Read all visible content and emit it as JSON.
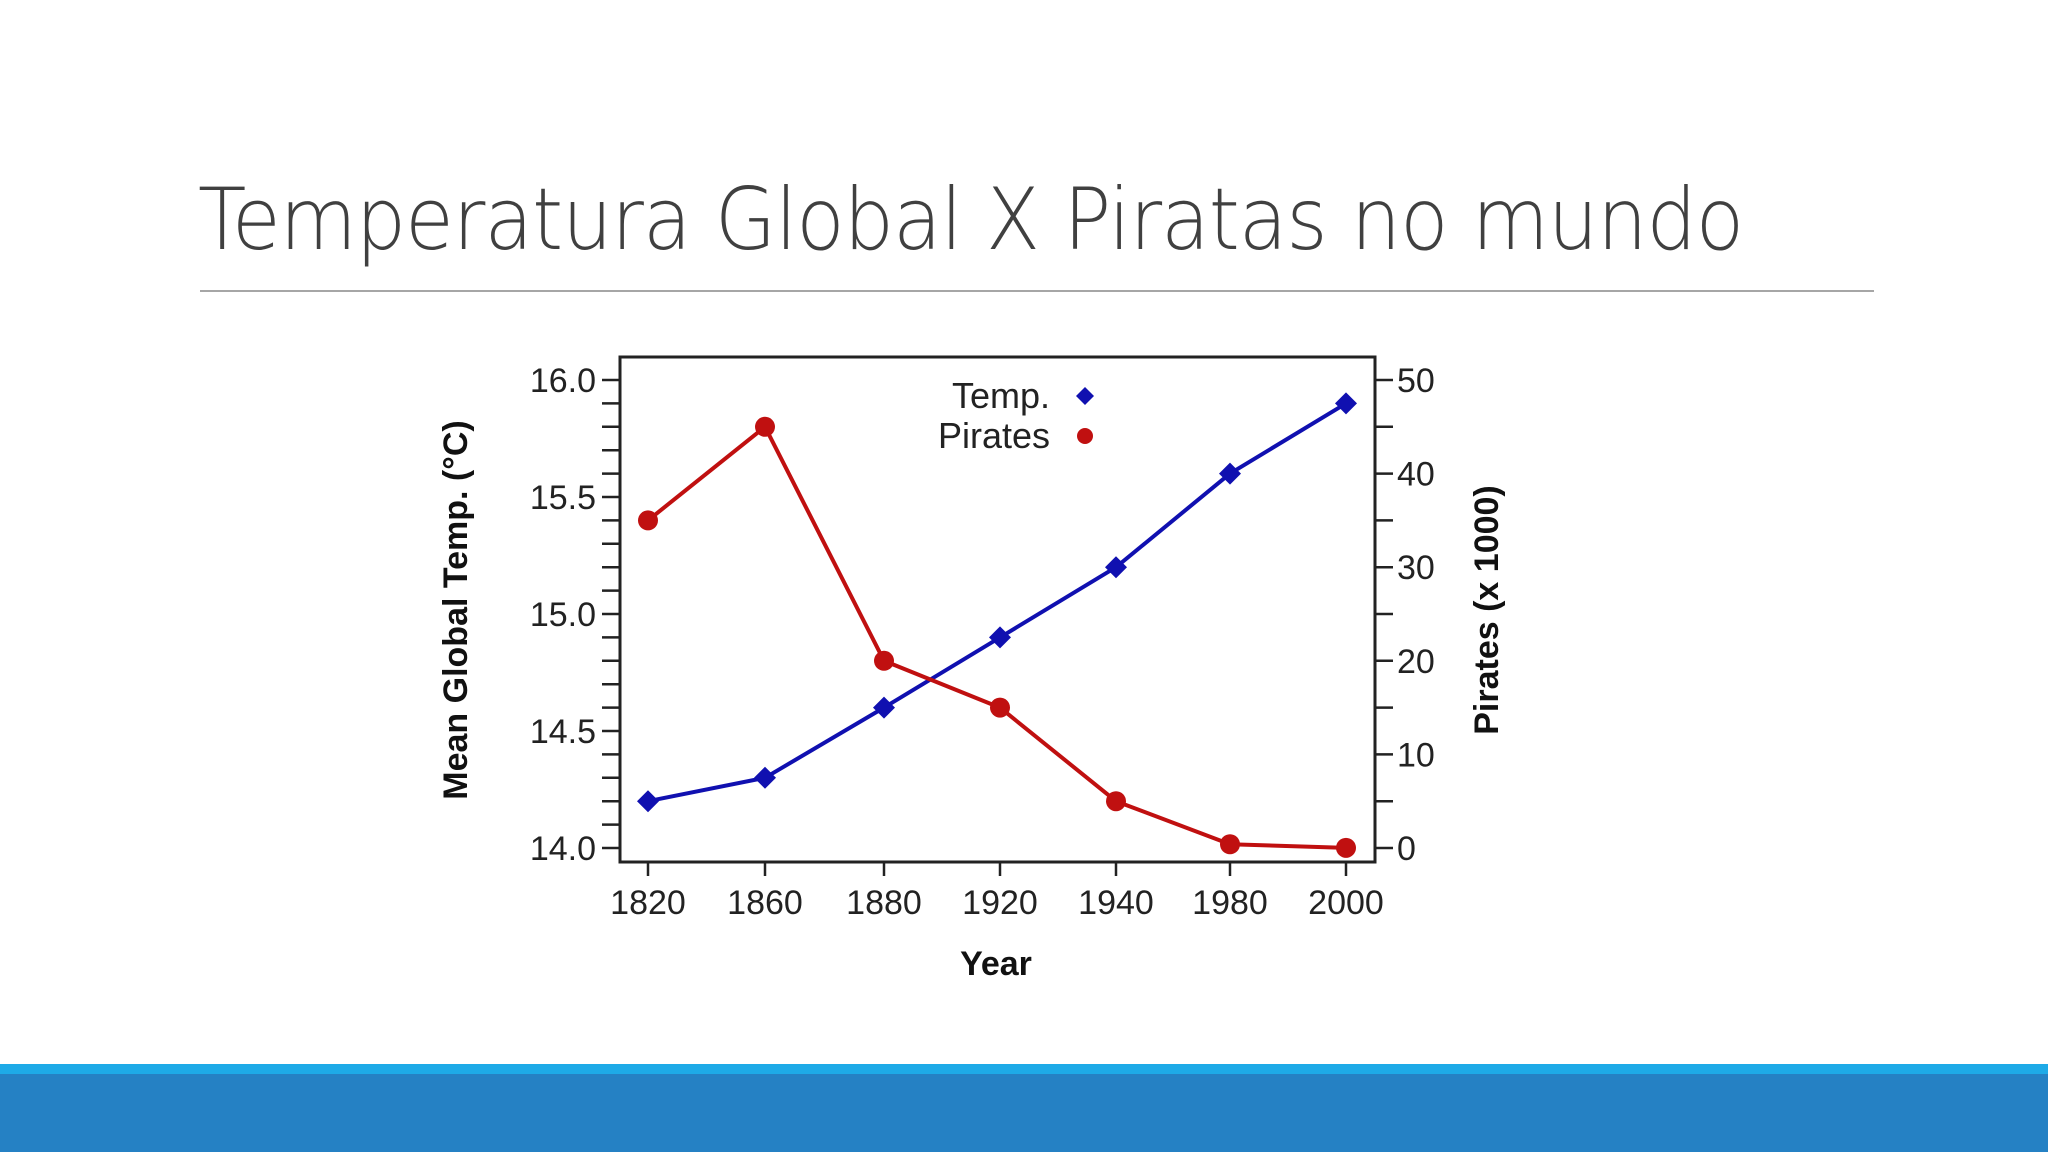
{
  "slide": {
    "title": "Temperatura Global X Piratas no mundo"
  },
  "colors": {
    "title_text": "#404040",
    "rule": "#a6a6a6",
    "temp_series": "#1010b0",
    "pirates_series": "#c01010",
    "band_light": "#1eaae7",
    "band_dark": "#2581c4"
  },
  "chart_data": {
    "type": "line",
    "title": "",
    "xlabel": "Year",
    "ylabel": "Mean Global Temp. (°C)",
    "y2label": "Pirates (x 1000)",
    "categories": [
      "1820",
      "1860",
      "1880",
      "1920",
      "1940",
      "1980",
      "2000"
    ],
    "series": [
      {
        "name": "Temp.",
        "axis": "left",
        "marker": "diamond",
        "color": "#1010b0",
        "values": [
          14.2,
          14.3,
          14.6,
          14.9,
          15.2,
          15.6,
          15.9
        ]
      },
      {
        "name": "Pirates",
        "axis": "right",
        "marker": "circle",
        "color": "#c01010",
        "values": [
          35,
          45,
          20,
          15,
          5,
          0.4,
          0.017
        ]
      }
    ],
    "ylim": [
      14.0,
      16.0
    ],
    "y2lim": [
      0,
      50
    ],
    "yticks": [
      "16.0",
      "15.5",
      "15.0",
      "14.5",
      "14.0"
    ],
    "y2ticks": [
      "50",
      "40",
      "30",
      "20",
      "10",
      "0"
    ],
    "legend": {
      "position": "top-center",
      "entries": [
        "Temp.",
        "Pirates"
      ]
    },
    "grid": false
  }
}
